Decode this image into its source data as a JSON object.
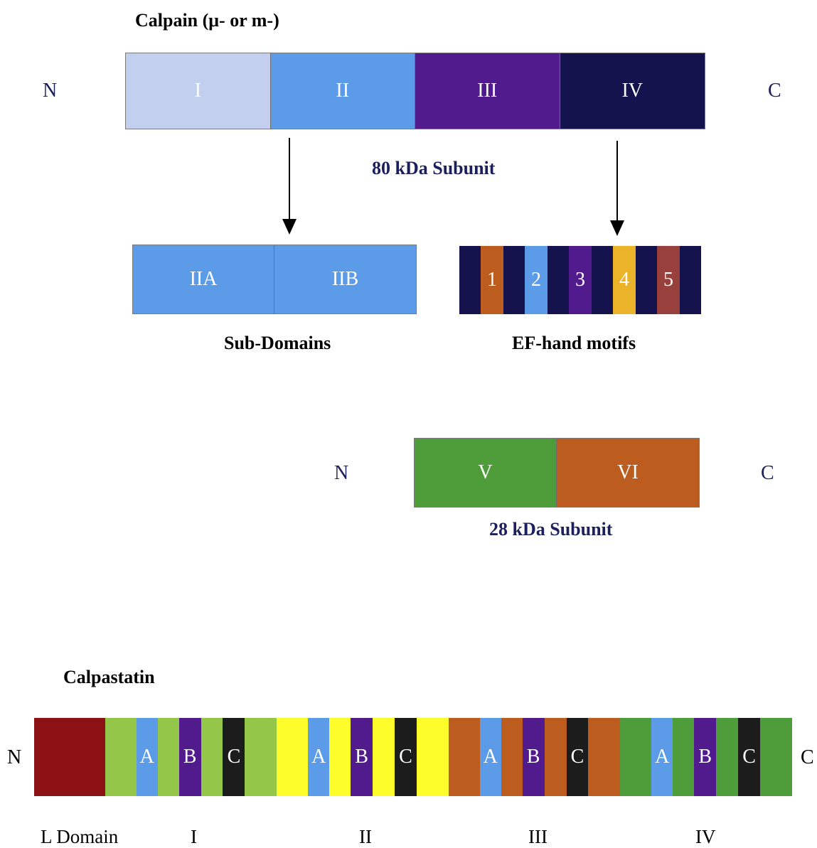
{
  "calpain": {
    "title": "Calpain (μ- or m-)",
    "n_label": "N",
    "c_label": "C",
    "large_subunit_label": "80 kDa Subunit",
    "domains": [
      {
        "label": "I",
        "color": "#c3cfee"
      },
      {
        "label": "II",
        "color": "#5c9be8"
      },
      {
        "label": "III",
        "color": "#511b8e"
      },
      {
        "label": "IV",
        "color": "#14134d"
      }
    ],
    "sub_domains": {
      "caption": "Sub-Domains",
      "items": [
        {
          "label": "IIA",
          "color": "#5c9be8"
        },
        {
          "label": "IIB",
          "color": "#5c9be8"
        }
      ]
    },
    "ef_hands": {
      "caption": "EF-hand motifs",
      "base_color": "#14134d",
      "items": [
        {
          "label": "1",
          "color": "#bc5d1f"
        },
        {
          "label": "2",
          "color": "#5c9be8"
        },
        {
          "label": "3",
          "color": "#511b8e"
        },
        {
          "label": "4",
          "color": "#eab32a"
        },
        {
          "label": "5",
          "color": "#98403c"
        }
      ]
    },
    "small_subunit": {
      "label": "28 kDa Subunit",
      "n_label": "N",
      "c_label": "C",
      "domains": [
        {
          "label": "V",
          "color": "#4f9d3a"
        },
        {
          "label": "VI",
          "color": "#bc5d1f"
        }
      ]
    }
  },
  "calpastatin": {
    "title": "Calpastatin",
    "n_label": "N",
    "c_label": "C",
    "l_domain_color": "#8c1114",
    "subdomain_colors": {
      "A": "#5c9be8",
      "B": "#511b8e",
      "C": "#1c1c1c"
    },
    "domains": [
      {
        "label": "I",
        "color": "#94c64a"
      },
      {
        "label": "II",
        "color": "#fdfd2c"
      },
      {
        "label": "III",
        "color": "#bc5d1f"
      },
      {
        "label": "IV",
        "color": "#4f9d3a"
      }
    ],
    "subdomain_labels": [
      "A",
      "B",
      "C"
    ],
    "bottom_labels": [
      "L Domain",
      "I",
      "II",
      "III",
      "IV"
    ]
  }
}
